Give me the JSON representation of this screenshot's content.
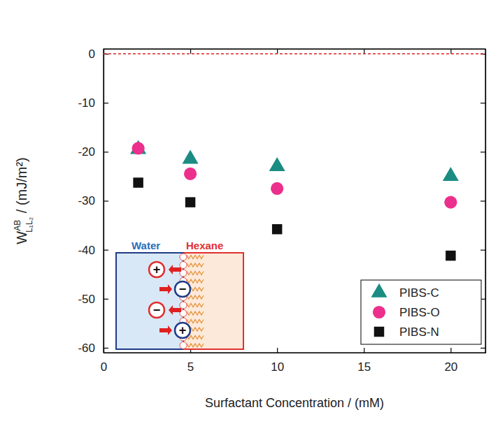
{
  "chart_data": {
    "type": "scatter",
    "xlabel": "Surfactant Concentration / (mM)",
    "ylabel": {
      "text": "W",
      "sup": "AB",
      "sub": "L₁L₂",
      "unit": " / (mJ/m²)"
    },
    "x": [
      2,
      5,
      10,
      20
    ],
    "series": [
      {
        "name": "PIBS-C",
        "color": "#1a8c82",
        "marker": "triangle",
        "values": [
          -19.5,
          -21.5,
          -23,
          -25
        ]
      },
      {
        "name": "PIBS-O",
        "color": "#ec2f8c",
        "marker": "circle",
        "values": [
          -19.3,
          -24.5,
          -27.5,
          -30.3
        ]
      },
      {
        "name": "PIBS-N",
        "color": "#111111",
        "marker": "square",
        "values": [
          -26.3,
          -30.3,
          -35.8,
          -41.2
        ]
      }
    ],
    "xlim": [
      0,
      22
    ],
    "xticks": [
      0,
      5,
      10,
      15,
      20
    ],
    "ylim": [
      -61,
      1
    ],
    "yticks": [
      0,
      -10,
      -20,
      -30,
      -40,
      -50,
      -60
    ],
    "reference_lines": [
      {
        "y": 0,
        "color": "#e02020",
        "line_style": "dashed"
      }
    ],
    "legend": "lower right",
    "grid": false,
    "inset": {
      "left_label": "Water",
      "right_label": "Hexane",
      "charges": [
        "+",
        "−",
        "−",
        "+"
      ]
    }
  }
}
